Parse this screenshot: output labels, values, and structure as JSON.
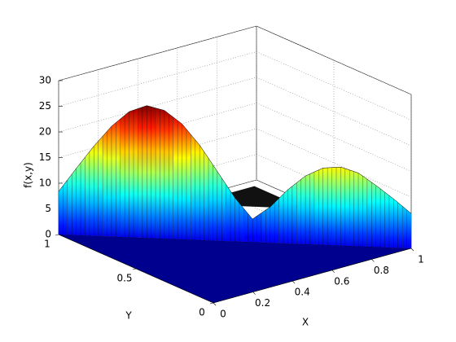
{
  "chart_data": {
    "type": "surface3d",
    "xlabel": "X",
    "ylabel": "Y",
    "zlabel": "f(x,y)",
    "x": [
      0,
      0.05,
      0.1,
      0.15,
      0.2,
      0.25,
      0.3,
      0.35,
      0.4,
      0.45,
      0.5,
      0.55,
      0.6,
      0.65,
      0.7,
      0.75,
      0.8,
      0.85,
      0.9,
      0.95,
      1
    ],
    "y": [
      1,
      0.95,
      0.9,
      0.85,
      0.8,
      0.75,
      0.7,
      0.65,
      0.6,
      0.55,
      0.5,
      0.45,
      0.4,
      0.35,
      0.3,
      0.25,
      0.2,
      0.15,
      0.1,
      0.05,
      0
    ],
    "values": [
      8.4,
      13,
      17.5,
      21.5,
      24.5,
      25.8,
      25,
      22.5,
      18.5,
      13.5,
      8.5,
      4.5,
      7,
      10.5,
      13.3,
      15,
      15.3,
      14.3,
      12,
      9.5,
      6.8
    ],
    "xlim": [
      0,
      1
    ],
    "ylim": [
      0,
      1
    ],
    "zlim": [
      0,
      30
    ],
    "xticks": [
      0,
      0.2,
      0.4,
      0.6,
      0.8,
      1
    ],
    "yticks": [
      0,
      0.5,
      1
    ],
    "zticks": [
      0,
      5,
      10,
      15,
      20,
      25,
      30
    ],
    "colormap": "jet",
    "grid": true
  }
}
